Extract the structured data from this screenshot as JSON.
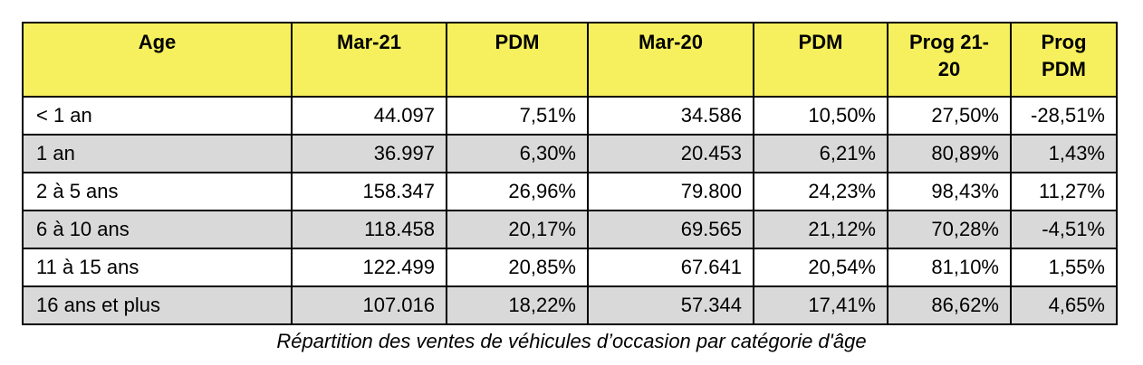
{
  "table": {
    "header": {
      "age": "Age",
      "mar21": "Mar-21",
      "pdm1": "PDM",
      "mar20": "Mar-20",
      "pdm2": "PDM",
      "prog_line1": "Prog 21-",
      "prog_line2": "20",
      "progpdm_line1": "Prog",
      "progpdm_line2": "PDM"
    },
    "rows": [
      {
        "age": "< 1 an",
        "mar21": "44.097",
        "pdm21": "7,51%",
        "mar20": "34.586",
        "pdm20": "10,50%",
        "prog": "27,50%",
        "progpdm": "-28,51%"
      },
      {
        "age": "1 an",
        "mar21": "36.997",
        "pdm21": "6,30%",
        "mar20": "20.453",
        "pdm20": "6,21%",
        "prog": "80,89%",
        "progpdm": "1,43%"
      },
      {
        "age": "2 à 5 ans",
        "mar21": "158.347",
        "pdm21": "26,96%",
        "mar20": "79.800",
        "pdm20": "24,23%",
        "prog": "98,43%",
        "progpdm": "11,27%"
      },
      {
        "age": "6 à 10 ans",
        "mar21": "118.458",
        "pdm21": "20,17%",
        "mar20": "69.565",
        "pdm20": "21,12%",
        "prog": "70,28%",
        "progpdm": "-4,51%"
      },
      {
        "age": "11 à 15 ans",
        "mar21": "122.499",
        "pdm21": "20,85%",
        "mar20": "67.641",
        "pdm20": "20,54%",
        "prog": "81,10%",
        "progpdm": "1,55%"
      },
      {
        "age": "16 ans et plus",
        "mar21": "107.016",
        "pdm21": "18,22%",
        "mar20": "57.344",
        "pdm20": "17,41%",
        "prog": "86,62%",
        "progpdm": "4,65%"
      }
    ]
  },
  "caption": "Répartition des ventes de véhicules d’occasion par catégorie d'âge",
  "colors": {
    "header_background": "#f6f05e",
    "alternate_row_background": "#d9d9d9",
    "border": "#000000"
  }
}
